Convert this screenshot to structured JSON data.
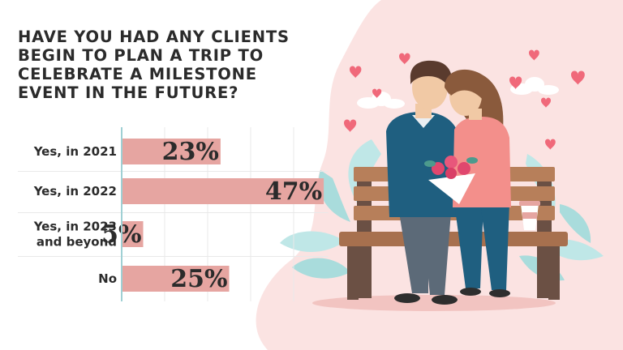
{
  "chart_data": {
    "type": "bar",
    "orientation": "horizontal",
    "title_lines": [
      "HAVE YOU HAD ANY CLIENTS",
      "BEGIN TO PLAN A TRIP TO",
      "CELEBRATE A MILESTONE",
      "EVENT IN THE FUTURE?"
    ],
    "categories": [
      {
        "lines": [
          "Yes, in 2021"
        ]
      },
      {
        "lines": [
          "Yes, in 2022"
        ]
      },
      {
        "lines": [
          "Yes, in 2023",
          "and beyond"
        ]
      },
      {
        "lines": [
          "No"
        ]
      }
    ],
    "values": [
      23,
      47,
      5,
      25
    ],
    "value_labels": [
      "23%",
      "47%",
      "5%",
      "25%"
    ],
    "unit": "%",
    "xlim": [
      0,
      50
    ],
    "grid": true,
    "legend": "none"
  },
  "colors": {
    "bar": "#e6a5a1",
    "axis": "#9fd0d4",
    "grid": "#e9e9e9",
    "background_blob": "#fbe3e2",
    "text": "#2b2b2b"
  },
  "illustration": {
    "subject": "couple-on-bench",
    "icons": [
      "heart-icon",
      "bouquet-icon",
      "coffee-cup-icon",
      "leaf-icon",
      "cloud-icon",
      "bench-icon"
    ]
  }
}
